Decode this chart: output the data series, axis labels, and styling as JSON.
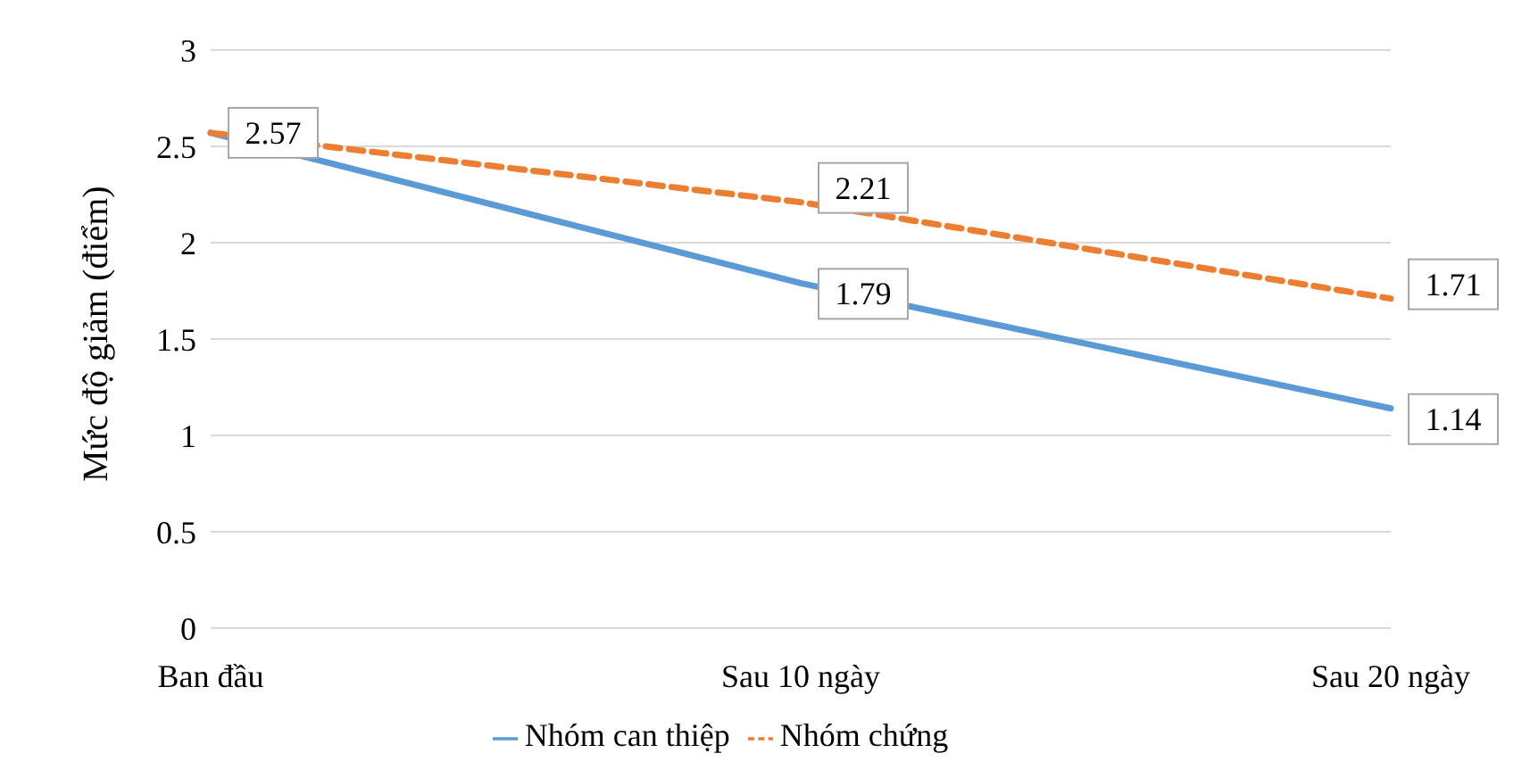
{
  "chart_data": {
    "type": "line",
    "ylabel": "Mức độ giảm (điểm)",
    "categories": [
      "Ban đầu",
      "Sau 10 ngày",
      "Sau 20 ngày"
    ],
    "series": [
      {
        "name": "Nhóm can thiệp",
        "color": "#5b9bd5",
        "values": [
          2.57,
          1.79,
          1.14
        ],
        "line_style": "solid",
        "value_labels": [
          "2.57",
          "1.79",
          "1.14"
        ]
      },
      {
        "name": "Nhóm chứng",
        "color": "#ed7d31",
        "values": [
          2.57,
          2.21,
          1.71
        ],
        "line_style": "dashed",
        "value_labels": [
          null,
          "2.21",
          "1.71"
        ]
      }
    ],
    "ylim": [
      0,
      3
    ],
    "yticks": [
      0,
      0.5,
      1,
      1.5,
      2,
      2.5,
      3
    ],
    "grid": "y",
    "legend": "bottom",
    "marker": "none"
  }
}
